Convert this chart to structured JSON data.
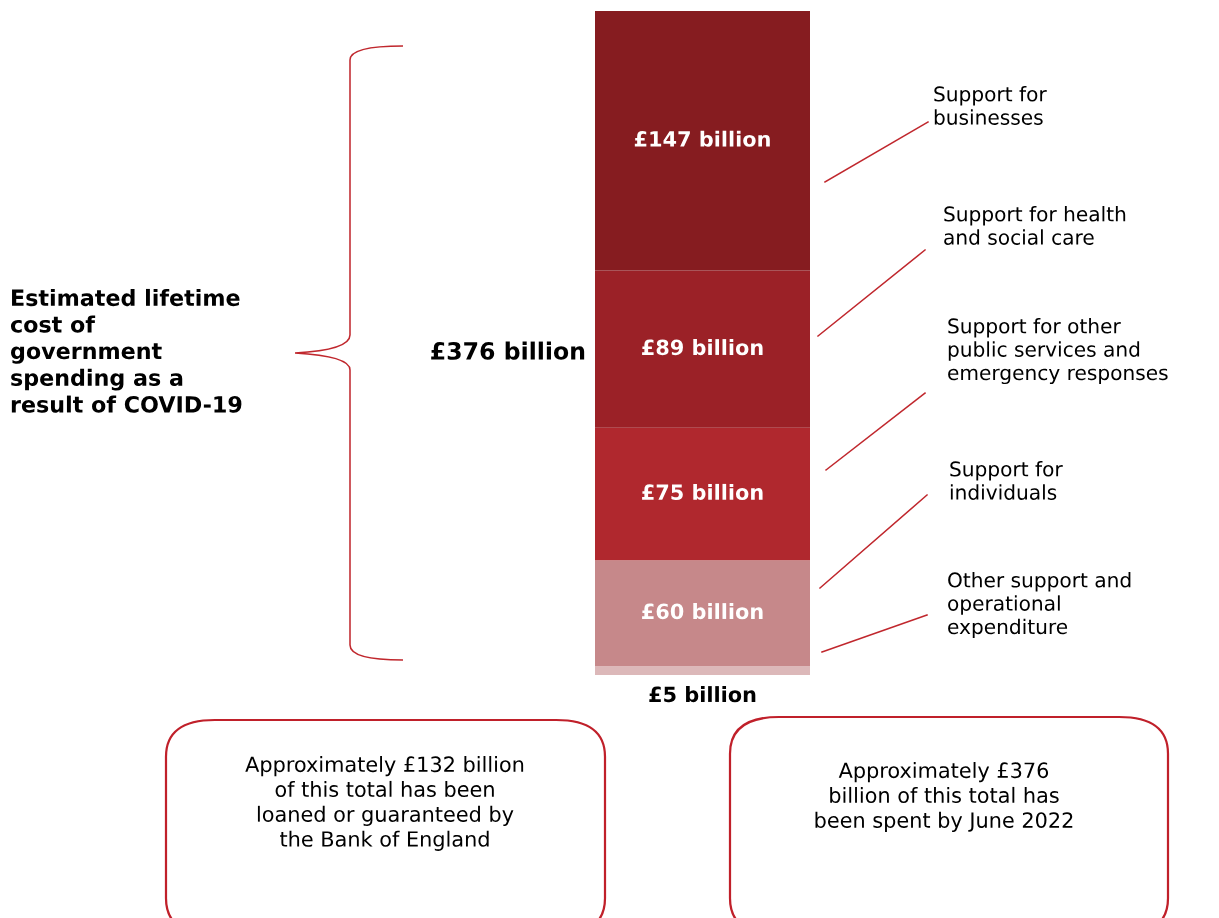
{
  "chart_data": {
    "type": "bar",
    "stacked": true,
    "categories": [
      null
    ],
    "series": [
      {
        "name": "Other support and\noperational\nexpenditure",
        "color": "#dcb8b9",
        "values": [
          5
        ],
        "value_labels": [
          "£5 billion"
        ]
      },
      {
        "name": "Support for\nindividuals",
        "color": "#c6888a",
        "values": [
          60
        ],
        "value_labels": [
          "£60 billion"
        ]
      },
      {
        "name": "Support for other\npublic services and\nemergency responses",
        "color": "#b0282e",
        "values": [
          75
        ],
        "value_labels": [
          "£75 billion"
        ]
      },
      {
        "name": "Support for health\nand social care",
        "color": "#9b2127",
        "values": [
          89
        ],
        "value_labels": [
          "£89 billion"
        ]
      },
      {
        "name": "Support for\nbusinesses",
        "color": "#861c20",
        "values": [
          147
        ],
        "value_labels": [
          "£147 billion"
        ]
      }
    ],
    "totals": [
      "£376 billion"
    ],
    "annotations": [
      "Estimated lifetime\ncost of\ngovernment\nspending as a\nresult of COVID-19",
      "Approximately £132 billion\nof this total has been\nloaned or guaranteed by\nthe Bank of England",
      "Approximately £376\nbillion of this total has\nbeen spent by June 2022"
    ]
  }
}
